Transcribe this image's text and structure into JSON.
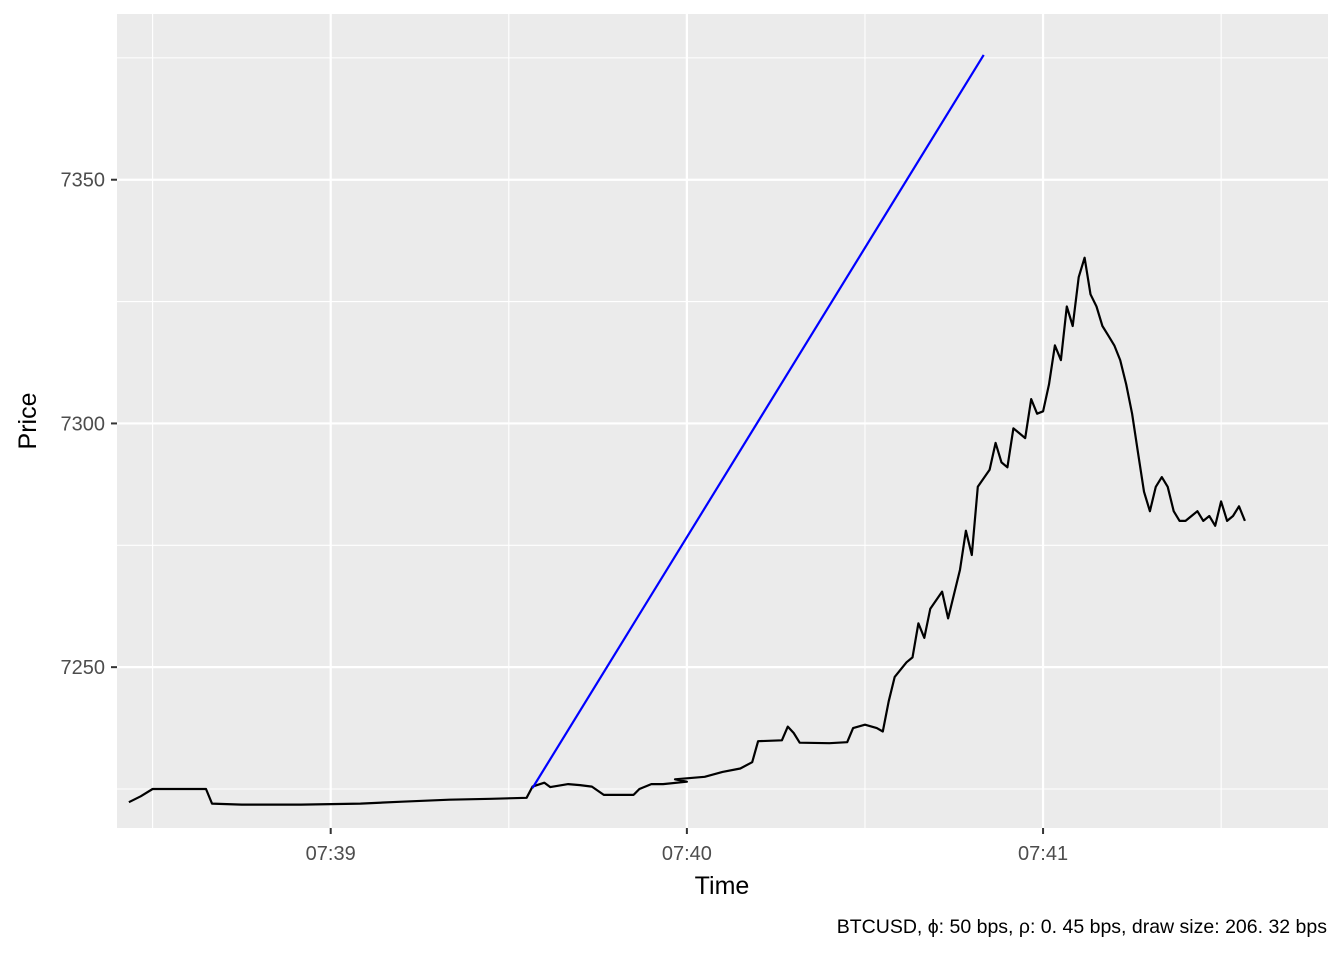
{
  "chart_data": {
    "type": "line",
    "xlabel": "Time",
    "ylabel": "Price",
    "caption": "BTCUSD, ϕ: 50 bps, ρ: 0. 45 bps, draw size: 206. 32 bps",
    "x_unit": "minutes",
    "xlim": [
      "07:38:24",
      "07:41:48"
    ],
    "ylim": [
      7217,
      7384
    ],
    "x_ticks": [
      {
        "x": "07:39:00",
        "label": "07:39"
      },
      {
        "x": "07:40:00",
        "label": "07:40"
      },
      {
        "x": "07:41:00",
        "label": "07:41"
      }
    ],
    "y_ticks": [
      7250,
      7300,
      7350
    ],
    "grid": true,
    "series": [
      {
        "color": "#000000",
        "points": [
          [
            "07:38:26",
            7222.3
          ],
          [
            "07:38:28",
            7223.5
          ],
          [
            "07:38:30",
            7225
          ],
          [
            "07:38:35",
            7225
          ],
          [
            "07:38:39",
            7225
          ],
          [
            "07:38:40",
            7222
          ],
          [
            "07:38:45",
            7221.8
          ],
          [
            "07:38:55",
            7221.8
          ],
          [
            "07:39:05",
            7222
          ],
          [
            "07:39:12",
            7222.4
          ],
          [
            "07:39:20",
            7222.8
          ],
          [
            "07:39:27",
            7223
          ],
          [
            "07:39:33",
            7223.2
          ],
          [
            "07:39:34",
            7225.5
          ],
          [
            "07:39:36",
            7226.3
          ],
          [
            "07:39:37",
            7225.4
          ],
          [
            "07:39:40",
            7226
          ],
          [
            "07:39:42",
            7225.8
          ],
          [
            "07:39:44",
            7225.5
          ],
          [
            "07:39:46",
            7223.8
          ],
          [
            "07:39:51",
            7223.8
          ],
          [
            "07:39:52",
            7225
          ],
          [
            "07:39:54",
            7226
          ],
          [
            "07:39:56",
            7226
          ],
          [
            "07:40:00",
            7226.5
          ],
          [
            "07:39:58",
            7227
          ],
          [
            "07:40:03",
            7227.5
          ],
          [
            "07:40:06",
            7228.5
          ],
          [
            "07:40:09",
            7229.2
          ],
          [
            "07:40:11",
            7230.5
          ],
          [
            "07:40:12",
            7234.8
          ],
          [
            "07:40:16",
            7235
          ],
          [
            "07:40:17",
            7237.8
          ],
          [
            "07:40:18",
            7236.5
          ],
          [
            "07:40:19",
            7234.5
          ],
          [
            "07:40:24",
            7234.4
          ],
          [
            "07:40:27",
            7234.6
          ],
          [
            "07:40:28",
            7237.5
          ],
          [
            "07:40:30",
            7238.2
          ],
          [
            "07:40:32",
            7237.5
          ],
          [
            "07:40:33",
            7236.8
          ],
          [
            "07:40:34",
            7243
          ],
          [
            "07:40:35",
            7248
          ],
          [
            "07:40:37",
            7251
          ],
          [
            "07:40:38",
            7252
          ],
          [
            "07:40:39",
            7259
          ],
          [
            "07:40:40",
            7256
          ],
          [
            "07:40:41",
            7262
          ],
          [
            "07:40:43",
            7265.5
          ],
          [
            "07:40:44",
            7260
          ],
          [
            "07:40:46",
            7270
          ],
          [
            "07:40:47",
            7278
          ],
          [
            "07:40:48",
            7273
          ],
          [
            "07:40:49",
            7287
          ],
          [
            "07:40:51",
            7290.5
          ],
          [
            "07:40:52",
            7296
          ],
          [
            "07:40:53",
            7292
          ],
          [
            "07:40:54",
            7291
          ],
          [
            "07:40:55",
            7299
          ],
          [
            "07:40:57",
            7297
          ],
          [
            "07:40:58",
            7305
          ],
          [
            "07:40:59",
            7302
          ],
          [
            "07:41:00",
            7302.5
          ],
          [
            "07:41:01",
            7308
          ],
          [
            "07:41:02",
            7316
          ],
          [
            "07:41:03",
            7313
          ],
          [
            "07:41:04",
            7324
          ],
          [
            "07:41:05",
            7320
          ],
          [
            "07:41:06",
            7330
          ],
          [
            "07:41:07",
            7334
          ],
          [
            "07:41:08",
            7326.5
          ],
          [
            "07:41:09",
            7324
          ],
          [
            "07:41:10",
            7320
          ],
          [
            "07:41:11",
            7318
          ],
          [
            "07:41:12",
            7316
          ],
          [
            "07:41:13",
            7313
          ],
          [
            "07:41:14",
            7308
          ],
          [
            "07:41:15",
            7302
          ],
          [
            "07:41:16",
            7294
          ],
          [
            "07:41:17",
            7286
          ],
          [
            "07:41:18",
            7282
          ],
          [
            "07:41:19",
            7287
          ],
          [
            "07:41:20",
            7289
          ],
          [
            "07:41:21",
            7287
          ],
          [
            "07:41:22",
            7282
          ],
          [
            "07:41:23",
            7280
          ],
          [
            "07:41:24",
            7280
          ],
          [
            "07:41:25",
            7281
          ],
          [
            "07:41:26",
            7282
          ],
          [
            "07:41:27",
            7280
          ],
          [
            "07:41:28",
            7281
          ],
          [
            "07:41:29",
            7279
          ],
          [
            "07:41:30",
            7284
          ],
          [
            "07:41:31",
            7280
          ],
          [
            "07:41:32",
            7281
          ],
          [
            "07:41:33",
            7283
          ],
          [
            "07:41:34",
            7280
          ]
        ]
      },
      {
        "color": "#0000ff",
        "points": [
          [
            "07:39:34",
            7225.2
          ],
          [
            "07:40:50",
            7375.6
          ]
        ]
      }
    ]
  }
}
